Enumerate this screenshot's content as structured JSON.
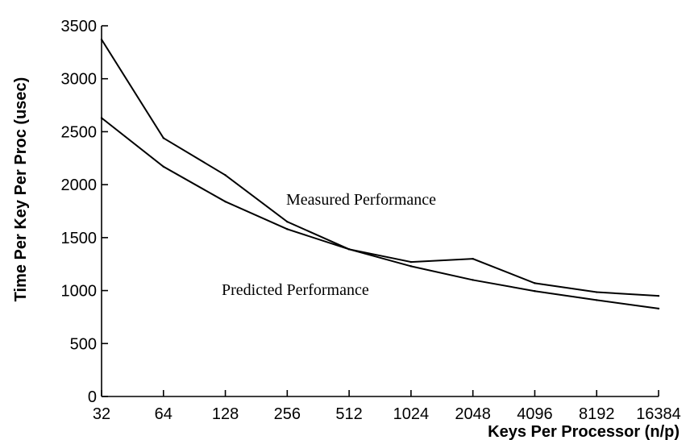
{
  "chart_data": {
    "type": "line",
    "title": "",
    "xlabel": "Keys Per Processor (n/p)",
    "ylabel": "Time Per Key Per Proc (usec)",
    "categories": [
      "32",
      "64",
      "128",
      "256",
      "512",
      "1024",
      "2048",
      "4096",
      "8192",
      "16384"
    ],
    "ylim": [
      0,
      3500
    ],
    "yticks": [
      0,
      500,
      1000,
      1500,
      2000,
      2500,
      3000,
      3500
    ],
    "ytick_labels": [
      "0",
      "500",
      "1000",
      "1500",
      "2000",
      "2500",
      "3000",
      "3500"
    ],
    "grid": false,
    "series": [
      {
        "name": "Measured Performance",
        "values": [
          3370,
          2440,
          2090,
          1650,
          1390,
          1270,
          1300,
          1070,
          985,
          950
        ]
      },
      {
        "name": "Predicted Performance",
        "values": [
          2630,
          2170,
          1840,
          1580,
          1390,
          1230,
          1100,
          995,
          910,
          830
        ]
      }
    ]
  }
}
